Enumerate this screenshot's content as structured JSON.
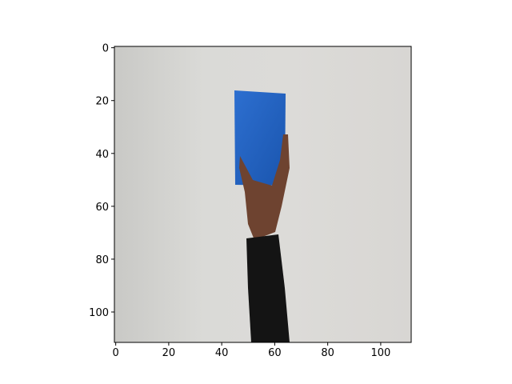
{
  "chart_data": {
    "type": "image",
    "xlim": [
      -0.5,
      111.5
    ],
    "ylim": [
      111.5,
      -0.5
    ],
    "xticks": [
      0,
      20,
      40,
      60,
      80,
      100
    ],
    "yticks": [
      0,
      20,
      40,
      60,
      80,
      100
    ]
  }
}
